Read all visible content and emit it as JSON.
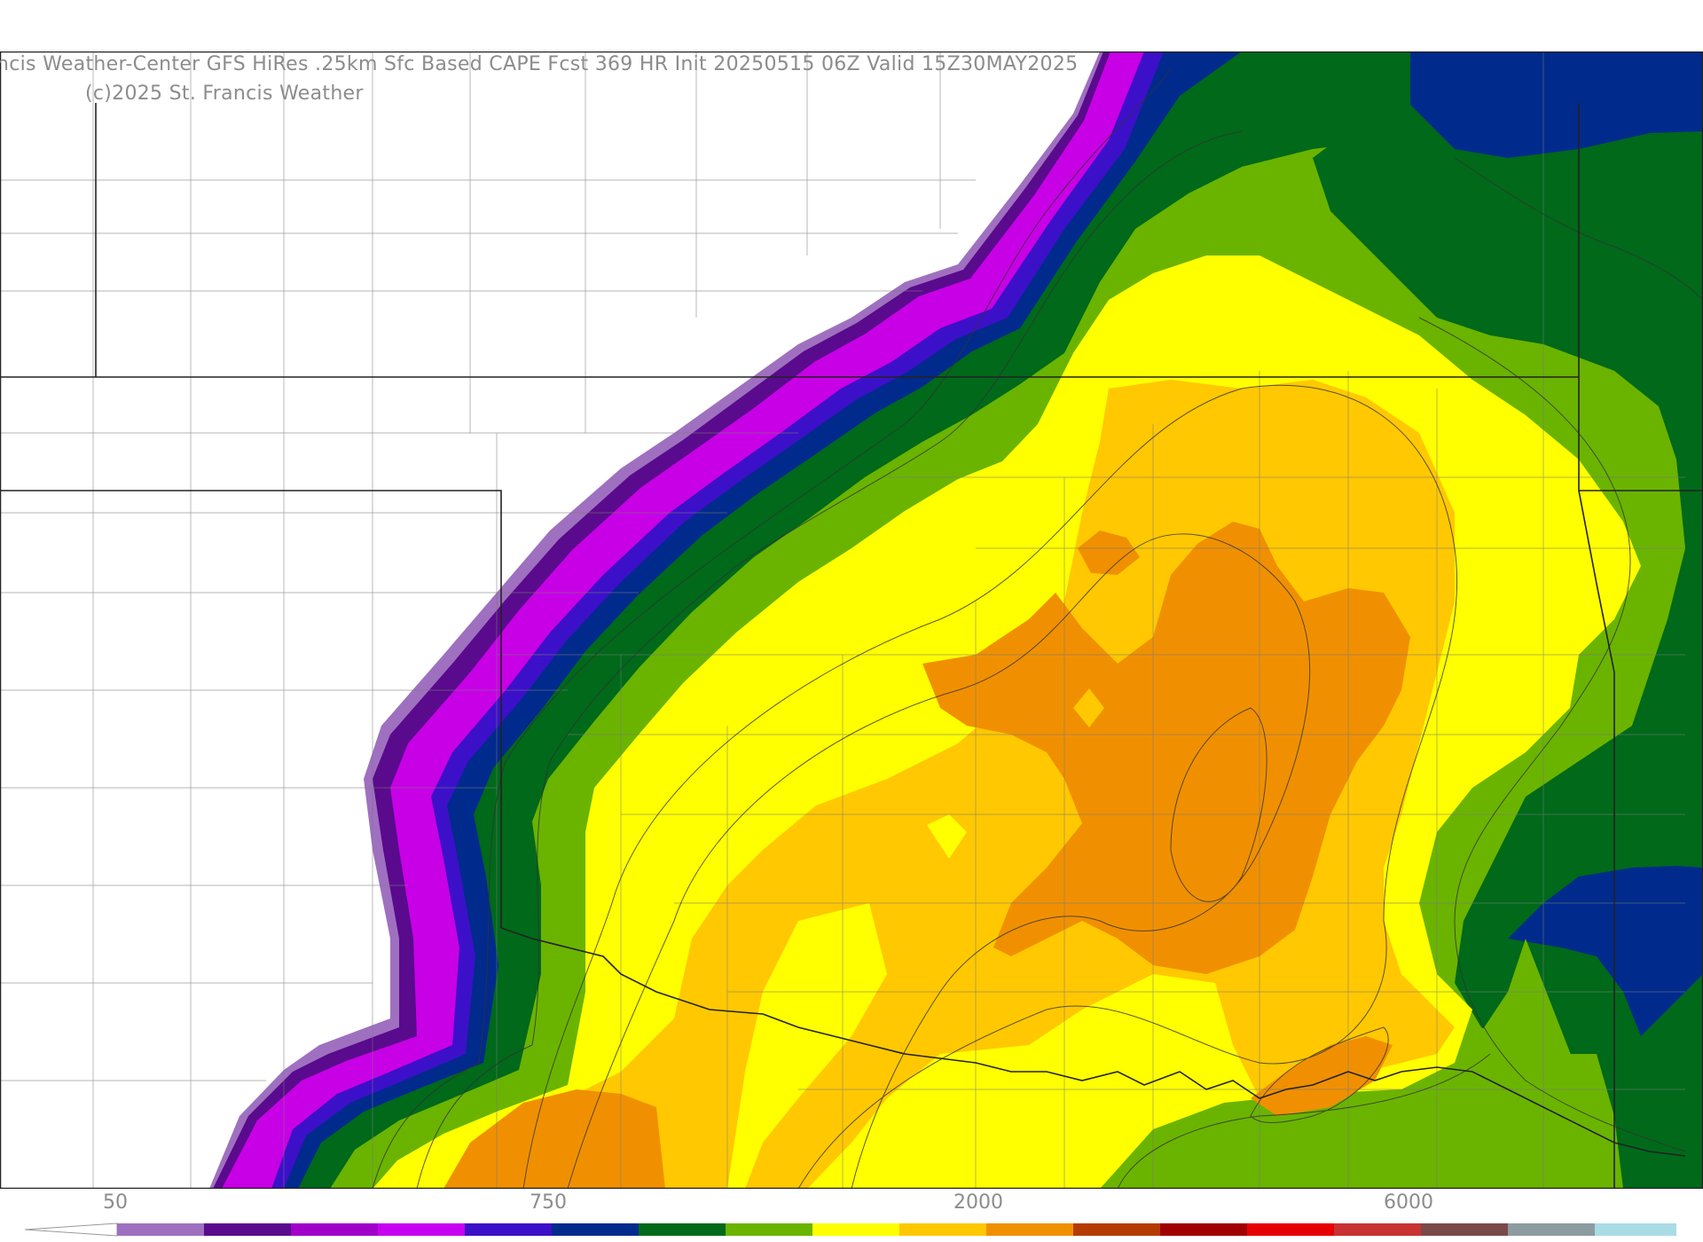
{
  "header": {
    "title": "ncis Weather-Center GFS HiRes .25km Sfc Based CAPE  Fcst 369 HR Init 20250515 06Z  Valid 15Z30MAY2025",
    "copyright": "(c)2025 St. Francis Weather"
  },
  "colorbar": {
    "labels": [
      "50",
      "750",
      "2000",
      "6000"
    ],
    "colors": [
      "#9f70c0",
      "#5a0a8c",
      "#a000c8",
      "#c800f0",
      "#3c10c8",
      "#002a8c",
      "#00691a",
      "#6ab400",
      "#ffff00",
      "#ffc800",
      "#f09000",
      "#b43c00",
      "#a00000",
      "#e60000",
      "#c83232",
      "#7a4a4a",
      "#8c9ca0",
      "#aadce6"
    ],
    "field": "Sfc Based CAPE"
  },
  "map": {
    "shading_colors": {
      "light_purple": "#9f70c0",
      "dark_purple": "#5a0a8c",
      "magenta": "#c800e6",
      "indigo": "#3c10c8",
      "navy": "#002a8c",
      "dark_green": "#00691a",
      "light_green": "#6ab400",
      "yellow": "#ffff00",
      "gold": "#ffc800",
      "orange": "#f09000"
    }
  }
}
